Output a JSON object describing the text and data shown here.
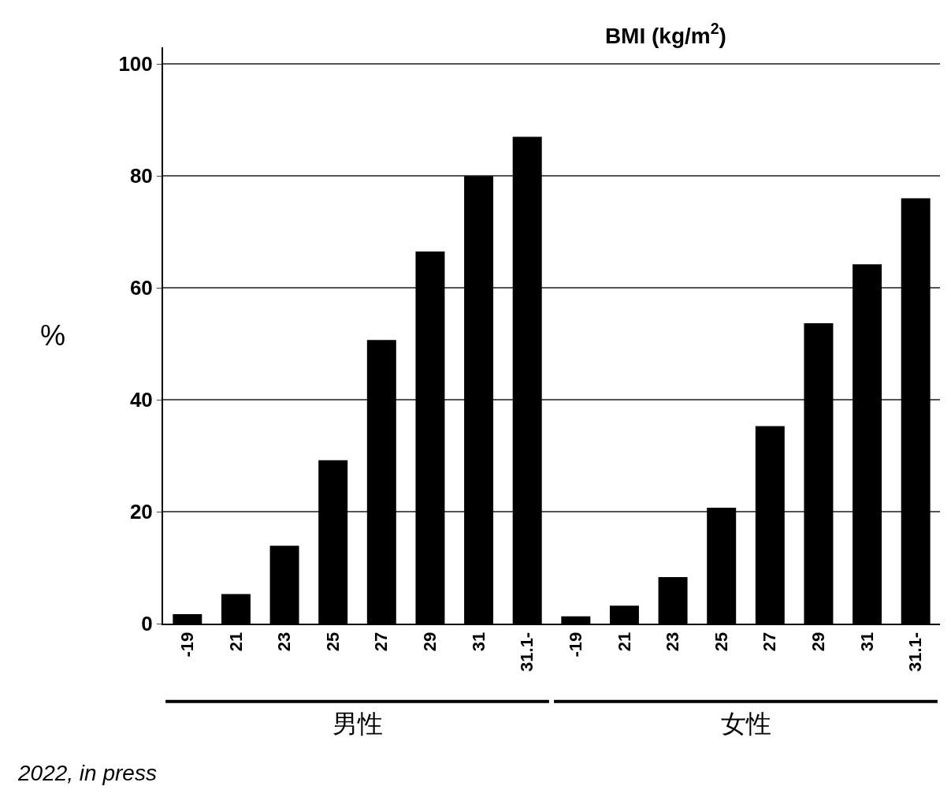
{
  "chart_data": {
    "type": "bar",
    "title": "BMI (kg/m$^{2}$)",
    "ylabel": "%",
    "categories": [
      "-19",
      "21",
      "23",
      "25",
      "27",
      "29",
      "31",
      "31.1-",
      "-19",
      "21",
      "23",
      "25",
      "27",
      "29",
      "31",
      "31.1-"
    ],
    "values": [
      1.7,
      5.3,
      13.9,
      29.2,
      50.7,
      66.5,
      80,
      87,
      1.3,
      3.2,
      8.3,
      20.7,
      35.3,
      53.7,
      64.2,
      76
    ],
    "color": "#000000",
    "ylim": [
      0,
      103
    ],
    "yticks": [
      0,
      20,
      40,
      60,
      80,
      100
    ],
    "grid": "y",
    "annotations": [
      "男性",
      "女性",
      "2022, in press"
    ]
  }
}
